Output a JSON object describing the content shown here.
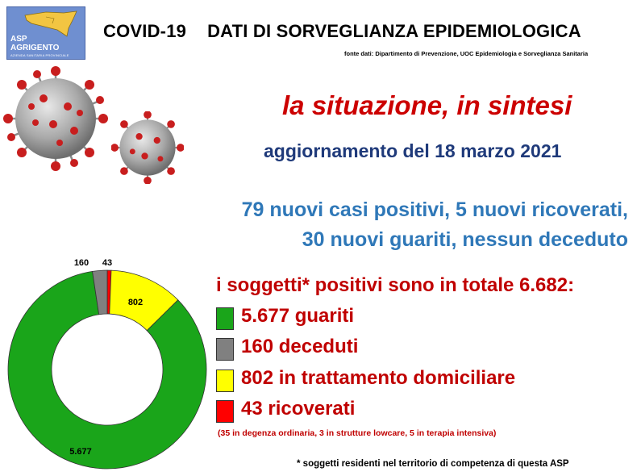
{
  "logo": {
    "line1": "ASP",
    "line2": "AGRIGENTO",
    "line3": "AZIENDA SANITARIA PROVINCIALE"
  },
  "header": {
    "tag": "COVID-19",
    "title": "DATI DI SORVEGLIANZA EPIDEMIOLOGICA",
    "source": "fonte dati: Dipartimento di Prevenzione, UOC Epidemiologia e Sorveglianza Sanitaria"
  },
  "headline": "la situazione, in sintesi",
  "update": "aggiornamento del 18 marzo 2021",
  "news": {
    "line1": "79 nuovi casi positivi, 5 nuovi ricoverati,",
    "line2": "30 nuovi guariti, nessun deceduto"
  },
  "total": "i soggetti* positivi sono in totale 6.682:",
  "legend": [
    {
      "label": "5.677 guariti",
      "color": "#1aa51a"
    },
    {
      "label": "160 deceduti",
      "color": "#808080"
    },
    {
      "label": "802 in trattamento domiciliare",
      "color": "#ffff00"
    },
    {
      "label": "43 ricoverati",
      "color": "#ff0000"
    }
  ],
  "breakdown": "(35 in degenza ordinaria, 3 in strutture lowcare, 5 in terapia intensiva)",
  "footnote": "* soggetti residenti nel territorio di competenza di questa ASP",
  "chart_data": {
    "type": "pie",
    "style": "donut",
    "slices": [
      {
        "value": 43,
        "display": "43",
        "color": "#ff0000"
      },
      {
        "value": 802,
        "display": "802",
        "color": "#ffff00"
      },
      {
        "value": 5677,
        "display": "5.677",
        "color": "#1aa51a"
      },
      {
        "value": 160,
        "display": "160",
        "color": "#808080"
      }
    ],
    "total": 6682
  }
}
